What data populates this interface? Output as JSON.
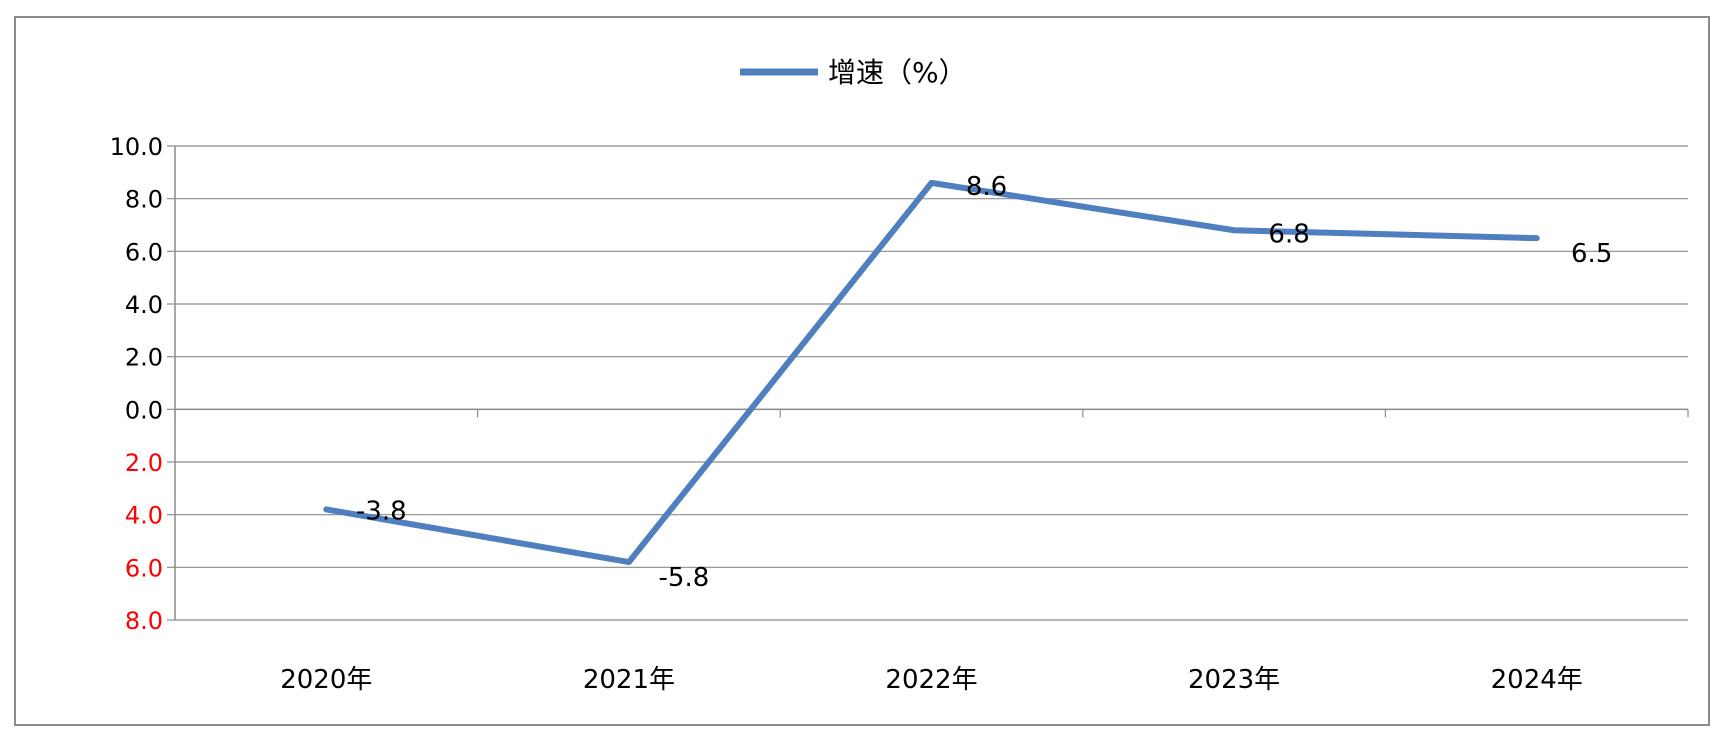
{
  "chart_data": {
    "type": "line",
    "categories": [
      "2020年",
      "2021年",
      "2022年",
      "2023年",
      "2024年"
    ],
    "series": [
      {
        "name": "增速（%）",
        "values": [
          -3.8,
          -5.8,
          8.6,
          6.8,
          6.5
        ],
        "data_labels": [
          "-3.8",
          "-5.8",
          "8.6",
          "6.8",
          "6.5"
        ],
        "color": "#4f7fbe"
      }
    ],
    "y_ticks": [
      {
        "value": 10,
        "label": "10.0",
        "color": "#000000"
      },
      {
        "value": 8,
        "label": "8.0",
        "color": "#000000"
      },
      {
        "value": 6,
        "label": "6.0",
        "color": "#000000"
      },
      {
        "value": 4,
        "label": "4.0",
        "color": "#000000"
      },
      {
        "value": 2,
        "label": "2.0",
        "color": "#000000"
      },
      {
        "value": 0,
        "label": "0.0",
        "color": "#000000"
      },
      {
        "value": -2,
        "label": "2.0",
        "color": "#ff0000"
      },
      {
        "value": -4,
        "label": "4.0",
        "color": "#ff0000"
      },
      {
        "value": -6,
        "label": "6.0",
        "color": "#ff0000"
      },
      {
        "value": -8,
        "label": "8.0",
        "color": "#ff0000"
      }
    ],
    "ylim": [
      -8,
      10
    ],
    "grid": true,
    "legend_position": "top-center",
    "title": "",
    "xlabel": "",
    "ylabel": ""
  }
}
